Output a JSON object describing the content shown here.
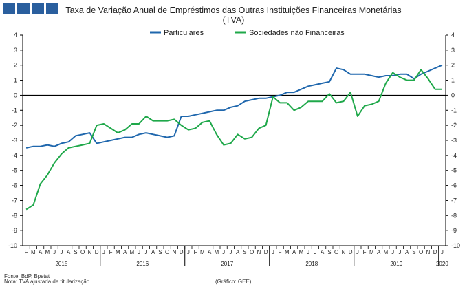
{
  "chart_data": {
    "type": "line",
    "title": "Taxa de Variação Anual de Empréstimos das Outras Instituições Financeiras Monetárias",
    "subtitle": "(TVA)",
    "ylim": [
      -10,
      4
    ],
    "yticks": [
      "-10",
      "-9",
      "-8",
      "-7",
      "-6",
      "-5",
      "-4",
      "-3",
      "-2",
      "-1",
      "0",
      "1",
      "2",
      "3",
      "4"
    ],
    "legend_position": "top",
    "grid": false,
    "month_labels": [
      "F",
      "M",
      "A",
      "M",
      "J",
      "J",
      "A",
      "S",
      "O",
      "N",
      "D",
      "J",
      "F",
      "M",
      "A",
      "M",
      "J",
      "J",
      "A",
      "S",
      "O",
      "N",
      "D",
      "J",
      "F",
      "M",
      "A",
      "M",
      "J",
      "J",
      "A",
      "S",
      "O",
      "N",
      "D",
      "J",
      "F",
      "M",
      "A",
      "M",
      "J",
      "J",
      "A",
      "S",
      "O",
      "N",
      "D",
      "J",
      "F",
      "M",
      "A",
      "M",
      "J",
      "J",
      "A",
      "S",
      "O",
      "N",
      "D",
      "J"
    ],
    "years": [
      {
        "label": "2015",
        "start": 0,
        "end": 10
      },
      {
        "label": "2016",
        "start": 11,
        "end": 22
      },
      {
        "label": "2017",
        "start": 23,
        "end": 34
      },
      {
        "label": "2018",
        "start": 35,
        "end": 46
      },
      {
        "label": "2019",
        "start": 47,
        "end": 58
      },
      {
        "label": "2020",
        "start": 59,
        "end": 59
      }
    ],
    "series": [
      {
        "name": "Particulares",
        "color": "#1f67ad",
        "values": [
          -3.5,
          -3.4,
          -3.4,
          -3.3,
          -3.4,
          -3.2,
          -3.1,
          -2.7,
          -2.6,
          -2.5,
          -3.2,
          -3.1,
          -3.0,
          -2.9,
          -2.8,
          -2.8,
          -2.6,
          -2.5,
          -2.6,
          -2.7,
          -2.8,
          -2.7,
          -1.4,
          -1.4,
          -1.3,
          -1.2,
          -1.1,
          -1.0,
          -1.0,
          -0.8,
          -0.7,
          -0.4,
          -0.3,
          -0.2,
          -0.2,
          -0.1,
          0.0,
          0.2,
          0.2,
          0.4,
          0.6,
          0.7,
          0.8,
          0.9,
          1.8,
          1.7,
          1.4,
          1.4,
          1.4,
          1.3,
          1.2,
          1.3,
          1.3,
          1.4,
          1.4,
          1.1,
          1.4,
          1.6,
          1.8,
          2.0
        ]
      },
      {
        "name": "Sociedades não Financeiras",
        "color": "#1fa84a",
        "values": [
          -7.6,
          -7.3,
          -5.9,
          -5.3,
          -4.5,
          -3.9,
          -3.5,
          -3.4,
          -3.3,
          -3.2,
          -2.0,
          -1.9,
          -2.2,
          -2.5,
          -2.3,
          -1.9,
          -1.9,
          -1.4,
          -1.7,
          -1.7,
          -1.7,
          -1.6,
          -2.0,
          -2.3,
          -2.2,
          -1.8,
          -1.7,
          -2.6,
          -3.3,
          -3.2,
          -2.6,
          -2.9,
          -2.8,
          -2.2,
          -2.0,
          -0.1,
          -0.5,
          -0.5,
          -1.0,
          -0.8,
          -0.4,
          -0.4,
          -0.4,
          0.1,
          -0.5,
          -0.4,
          0.2,
          -1.4,
          -0.7,
          -0.6,
          -0.4,
          0.8,
          1.5,
          1.2,
          1.0,
          1.0,
          1.7,
          1.1,
          0.4,
          0.4
        ]
      }
    ]
  },
  "footer": {
    "source": "Fonte: BdP, Bpstat",
    "note": "Nota: TVA ajustada de titularização",
    "credit": "(Gráfico: GEE)"
  }
}
